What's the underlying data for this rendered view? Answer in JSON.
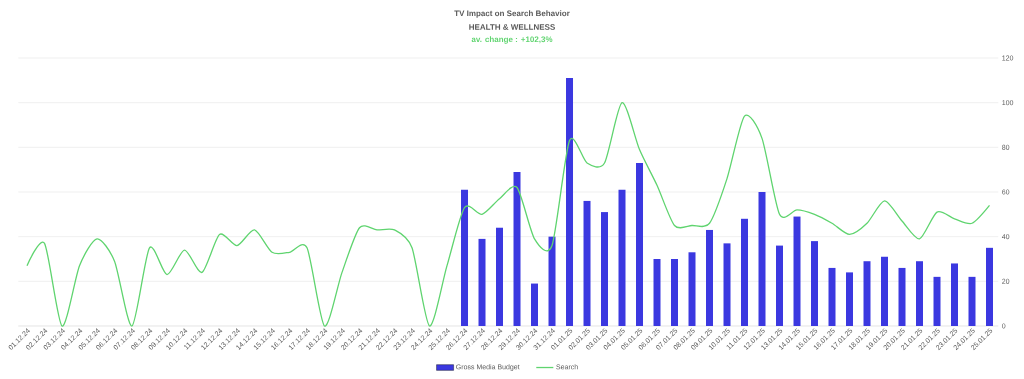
{
  "chart_data": {
    "type": "bar",
    "title": "TV Impact on Search Behavior",
    "subtitle": "HEALTH & WELLNESS",
    "annotations": [
      "av. change : +102,3%"
    ],
    "categories": [
      "01.12.24",
      "02.12.24",
      "03.12.24",
      "04.12.24",
      "05.12.24",
      "06.12.24",
      "07.12.24",
      "08.12.24",
      "09.12.24",
      "10.12.24",
      "11.12.24",
      "12.12.24",
      "13.12.24",
      "14.12.24",
      "15.12.24",
      "16.12.24",
      "17.12.24",
      "18.12.24",
      "19.12.24",
      "20.12.24",
      "21.12.24",
      "22.12.24",
      "23.12.24",
      "24.12.24",
      "25.12.24",
      "26.12.24",
      "27.12.24",
      "28.12.24",
      "29.12.24",
      "30.12.24",
      "31.12.24",
      "01.01.25",
      "02.01.25",
      "03.01.25",
      "04.01.25",
      "05.01.25",
      "06.01.25",
      "07.01.25",
      "08.01.25",
      "09.01.25",
      "10.01.25",
      "11.01.25",
      "12.01.25",
      "13.01.25",
      "14.01.25",
      "15.01.25",
      "16.01.25",
      "17.01.25",
      "18.01.25",
      "19.01.25",
      "20.01.25",
      "21.01.25",
      "22.01.25",
      "23.01.25",
      "24.01.25",
      "25.01.25"
    ],
    "series": [
      {
        "name": "Gross Media Budget",
        "color": "#3b38e0",
        "values": [
          null,
          null,
          null,
          null,
          null,
          null,
          null,
          null,
          null,
          null,
          null,
          null,
          null,
          null,
          null,
          null,
          null,
          null,
          null,
          null,
          null,
          null,
          null,
          null,
          null,
          61,
          39,
          44,
          69,
          19,
          40,
          111,
          56,
          51,
          61,
          73,
          30,
          30,
          33,
          43,
          37,
          48,
          60,
          36,
          49,
          38,
          26,
          24,
          29,
          31,
          26,
          29,
          22,
          28,
          22,
          35
        ]
      },
      {
        "name": "Search",
        "type": "line",
        "color": "#5fd46f",
        "values": [
          27,
          37,
          0,
          27,
          39,
          29,
          0,
          35,
          23,
          34,
          24,
          41,
          36,
          43,
          33,
          33,
          35,
          0,
          24,
          44,
          43,
          43,
          35,
          0,
          27,
          53,
          50,
          57,
          62,
          39,
          36,
          83,
          73,
          73,
          100,
          79,
          63,
          45,
          45,
          46,
          66,
          94,
          84,
          50,
          52,
          50,
          46,
          41,
          46,
          56,
          47,
          39,
          51,
          48,
          46,
          54
        ]
      }
    ],
    "ylim": [
      0,
      120
    ],
    "yticks": [
      0,
      20,
      40,
      60,
      80,
      100,
      120
    ],
    "grid": "y",
    "legend": "bottom"
  }
}
